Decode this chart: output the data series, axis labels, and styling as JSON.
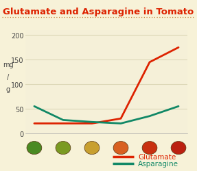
{
  "title": "Glutamate and Asparagine in Tomato",
  "title_color": "#dd2200",
  "background_color": "#f7f2d8",
  "plot_background_color": "#f5f0d8",
  "ylabel_lines": [
    "mg",
    "/",
    "g"
  ],
  "ylim": [
    0,
    210
  ],
  "yticks": [
    0,
    50,
    100,
    150,
    200
  ],
  "n_points": 6,
  "glutamate": [
    20,
    20,
    20,
    30,
    145,
    175
  ],
  "asparagine": [
    55,
    27,
    23,
    20,
    35,
    55
  ],
  "glutamate_color": "#dd2200",
  "asparagine_color": "#118866",
  "line_width": 2.0,
  "legend_glutamate": "Glutamate",
  "legend_asparagine": "Asparagine",
  "legend_text_color_glut": "#dd2200",
  "legend_text_color_asp": "#118866",
  "grid_color": "#ddd8b8",
  "title_dotted_line_color": "#cc8844",
  "tomato_colors": [
    "#4a8a22",
    "#7a9a22",
    "#c8a030",
    "#d86020",
    "#c83010",
    "#bb2010"
  ]
}
